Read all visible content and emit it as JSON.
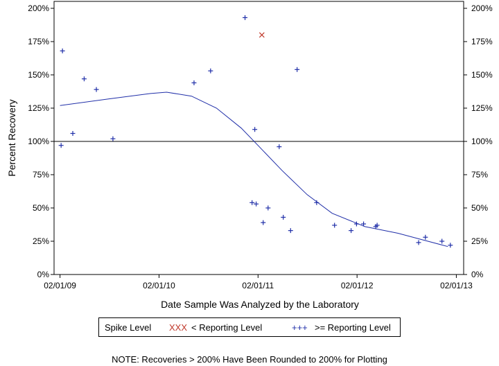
{
  "chart_data": {
    "type": "scatter",
    "xlabel": "Date Sample Was Analyzed by the Laboratory",
    "ylabel": "Percent Recovery",
    "x_ticks": [
      "02/01/09",
      "02/01/10",
      "02/01/11",
      "02/01/12",
      "02/01/13"
    ],
    "y_ticks": [
      "0%",
      "25%",
      "50%",
      "75%",
      "100%",
      "125%",
      "150%",
      "175%",
      "200%"
    ],
    "ylim": [
      0,
      200
    ],
    "xlim": [
      "2009-01-10",
      "2013-02-28"
    ],
    "reference_line": 100,
    "series": [
      {
        "name": "< Reporting Level",
        "marker": "x",
        "color": "#c0392b",
        "points": [
          {
            "x": "2011-02-15",
            "y": 180
          }
        ]
      },
      {
        "name": ">= Reporting Level",
        "marker": "+",
        "color": "#1f2ea8",
        "points": [
          {
            "x": "2009-02-05",
            "y": 97
          },
          {
            "x": "2009-02-10",
            "y": 168
          },
          {
            "x": "2009-03-20",
            "y": 106
          },
          {
            "x": "2009-05-01",
            "y": 147
          },
          {
            "x": "2009-06-15",
            "y": 139
          },
          {
            "x": "2009-08-15",
            "y": 102
          },
          {
            "x": "2010-06-10",
            "y": 144
          },
          {
            "x": "2010-08-10",
            "y": 153
          },
          {
            "x": "2010-12-15",
            "y": 193
          },
          {
            "x": "2011-01-10",
            "y": 54
          },
          {
            "x": "2011-01-20",
            "y": 109
          },
          {
            "x": "2011-01-25",
            "y": 53
          },
          {
            "x": "2011-02-20",
            "y": 39
          },
          {
            "x": "2011-03-10",
            "y": 50
          },
          {
            "x": "2011-04-20",
            "y": 96
          },
          {
            "x": "2011-05-05",
            "y": 43
          },
          {
            "x": "2011-06-01",
            "y": 33
          },
          {
            "x": "2011-06-25",
            "y": 154
          },
          {
            "x": "2011-09-05",
            "y": 54
          },
          {
            "x": "2011-11-10",
            "y": 37
          },
          {
            "x": "2012-01-10",
            "y": 33
          },
          {
            "x": "2012-01-30",
            "y": 38
          },
          {
            "x": "2012-02-25",
            "y": 38
          },
          {
            "x": "2012-04-10",
            "y": 36
          },
          {
            "x": "2012-04-15",
            "y": 37
          },
          {
            "x": "2012-09-15",
            "y": 24
          },
          {
            "x": "2012-10-10",
            "y": 28
          },
          {
            "x": "2012-12-10",
            "y": 25
          },
          {
            "x": "2013-01-10",
            "y": 22
          }
        ]
      }
    ],
    "trend": {
      "color": "#1f2ea8",
      "points": [
        {
          "x": "2009-02-01",
          "y": 127
        },
        {
          "x": "2009-08-01",
          "y": 132
        },
        {
          "x": "2010-01-01",
          "y": 136
        },
        {
          "x": "2010-03-01",
          "y": 137
        },
        {
          "x": "2010-06-01",
          "y": 134
        },
        {
          "x": "2010-09-01",
          "y": 125
        },
        {
          "x": "2010-12-01",
          "y": 110
        },
        {
          "x": "2011-02-01",
          "y": 97
        },
        {
          "x": "2011-05-01",
          "y": 78
        },
        {
          "x": "2011-08-01",
          "y": 60
        },
        {
          "x": "2011-11-01",
          "y": 46
        },
        {
          "x": "2012-03-01",
          "y": 36
        },
        {
          "x": "2012-07-01",
          "y": 31
        },
        {
          "x": "2012-10-01",
          "y": 26
        },
        {
          "x": "2013-01-01",
          "y": 21
        }
      ]
    },
    "legend": {
      "title": "Spike Level",
      "less_marker": "XXX",
      "less_label": "< Reporting Level",
      "greater_marker": "+++",
      "greater_label": ">= Reporting Level"
    },
    "note": "NOTE: Recoveries > 200% Have Been Rounded to 200% for Plotting",
    "grid": false
  }
}
